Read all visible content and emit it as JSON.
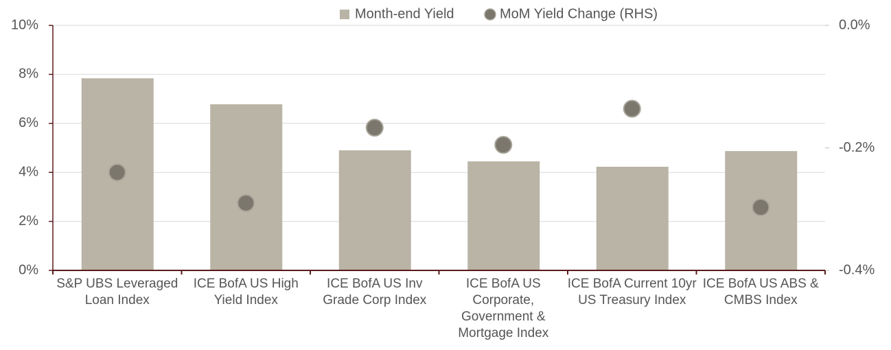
{
  "chart_data": {
    "type": "bar",
    "categories": [
      "S&P UBS Leveraged Loan Index",
      "ICE BofA US High Yield Index",
      "ICE BofA US Inv Grade Corp Index",
      "ICE BofA US Corporate, Government & Mortgage Index",
      "ICE BofA Current 10yr US Treasury Index",
      "ICE BofA US ABS & CMBS Index"
    ],
    "series": [
      {
        "name": "Month-end Yield",
        "type": "bar",
        "color": "#b9b4a5",
        "values": [
          7.84,
          6.78,
          4.9,
          4.45,
          4.23,
          4.87
        ]
      },
      {
        "name": "MoM Yield Change (RHS)",
        "type": "scatter",
        "axis": "y2",
        "color": "#7b776d",
        "values": [
          -0.24,
          -0.29,
          -0.167,
          -0.195,
          -0.136,
          -0.297
        ]
      }
    ],
    "ylim": [
      0,
      10
    ],
    "yticks": [
      {
        "value": 0,
        "label": "0%"
      },
      {
        "value": 2,
        "label": "2%"
      },
      {
        "value": 4,
        "label": "4%"
      },
      {
        "value": 6,
        "label": "6%"
      },
      {
        "value": 8,
        "label": "8%"
      },
      {
        "value": 10,
        "label": "10%"
      }
    ],
    "y2lim": [
      -0.4,
      0
    ],
    "y2ticks": [
      {
        "value": -0.4,
        "label": "-0.4%"
      },
      {
        "value": -0.2,
        "label": "-0.2%"
      },
      {
        "value": 0,
        "label": "0.0%"
      }
    ],
    "grid": true,
    "legend": "top"
  }
}
